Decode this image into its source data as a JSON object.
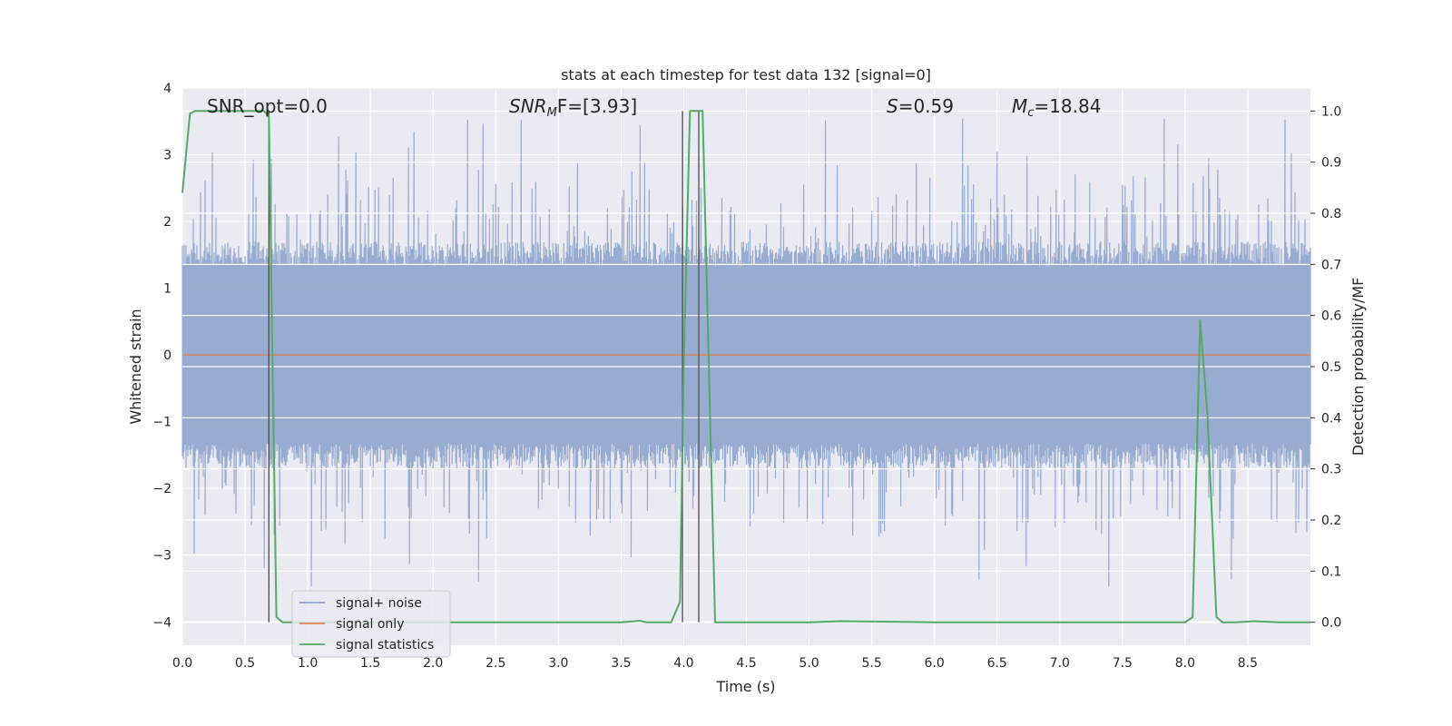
{
  "chart_data": {
    "type": "line",
    "title": "stats at each timestep for test data 132 [signal=0]",
    "xlabel": "Time (s)",
    "ylabel": "Whitened strain",
    "y2label": "Detection probability/MF",
    "xlim": [
      0,
      9.0
    ],
    "ylim": [
      -4.35,
      4.0
    ],
    "y2lim": [
      -0.045,
      1.045
    ],
    "xticks": [
      "0.0",
      "0.5",
      "1.0",
      "1.5",
      "2.0",
      "2.5",
      "3.0",
      "3.5",
      "4.0",
      "4.5",
      "5.0",
      "5.5",
      "6.0",
      "6.5",
      "7.0",
      "7.5",
      "8.0",
      "8.5"
    ],
    "yticks": [
      "4",
      "3",
      "2",
      "1",
      "0",
      "−1",
      "−2",
      "−3",
      "−4"
    ],
    "y2ticks": [
      "1.0",
      "0.9",
      "0.8",
      "0.7",
      "0.6",
      "0.5",
      "0.4",
      "0.3",
      "0.2",
      "0.1",
      "0.0"
    ],
    "grid": true,
    "legend_position": "lower-left",
    "annotations": {
      "snr_opt": "SNR_opt=0.0",
      "snr_mf_label": "SNR",
      "snr_mf_sub": "M",
      "snr_mf_value": "F=[3.93]",
      "s_label": "S",
      "s_value": "=0.59",
      "mc_label": "M",
      "mc_sub": "c",
      "mc_value": "=18.84"
    },
    "vertical_lines_x": [
      0.69,
      3.99,
      4.12
    ],
    "series": [
      {
        "name": "signal+ noise",
        "color": "#8fa4cc",
        "axis": "left",
        "style": "dense noise, approx. uniform amplitude",
        "envelope": {
          "typical_abs_max": 1.7,
          "peak_max": 3.65,
          "peak_min": -3.55
        }
      },
      {
        "name": "signal only",
        "color": "#dd8452",
        "axis": "left",
        "x": [
          0,
          9.0
        ],
        "y": [
          0,
          0
        ]
      },
      {
        "name": "signal statistics",
        "color": "#55a868",
        "axis": "right",
        "x": [
          0.0,
          0.06,
          0.1,
          0.2,
          0.3,
          0.4,
          0.5,
          0.55,
          0.6,
          0.65,
          0.69,
          0.72,
          0.75,
          0.8,
          1.0,
          2.0,
          3.0,
          3.5,
          3.65,
          3.7,
          3.75,
          3.9,
          3.97,
          4.0,
          4.05,
          4.1,
          4.15,
          4.2,
          4.25,
          4.3,
          5.0,
          5.25,
          6.0,
          7.0,
          7.5,
          7.7,
          7.9,
          8.0,
          8.06,
          8.12,
          8.18,
          8.25,
          8.3,
          8.4,
          8.55,
          8.75,
          9.0
        ],
        "y": [
          0.84,
          0.995,
          1.0,
          1.0,
          1.0,
          1.0,
          1.0,
          1.0,
          1.0,
          1.0,
          0.99,
          0.5,
          0.01,
          0.0,
          0.0,
          0.0,
          0.0,
          0.0,
          0.003,
          0.0,
          0.0,
          0.0,
          0.04,
          0.5,
          1.0,
          1.0,
          1.0,
          0.5,
          0.0,
          0.0,
          0.0,
          0.002,
          0.0,
          0.0,
          0.0,
          0.0,
          0.0,
          0.0,
          0.01,
          0.59,
          0.4,
          0.01,
          0.0,
          0.0,
          0.002,
          0.0,
          0.0
        ]
      }
    ]
  }
}
